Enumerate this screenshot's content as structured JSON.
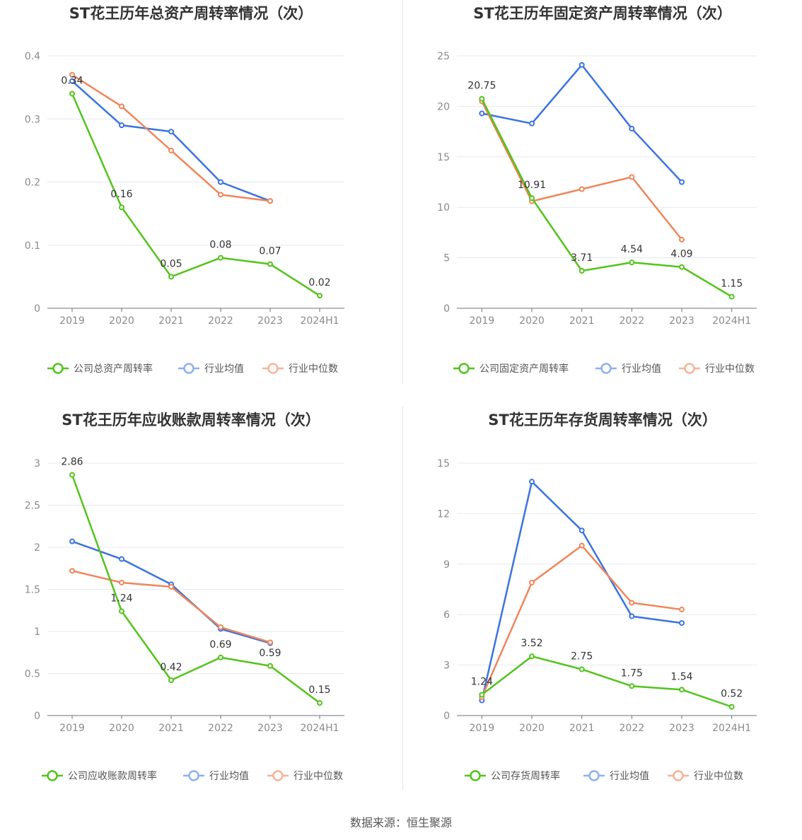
{
  "source_note": "数据来源：恒生聚源",
  "chart_data": [
    {
      "type": "line",
      "title": "ST花王历年总资产周转率情况（次）",
      "categories": [
        "2019",
        "2020",
        "2021",
        "2022",
        "2023",
        "2024H1"
      ],
      "y_ticks": [
        "0",
        "0.1",
        "0.2",
        "0.3",
        "0.4"
      ],
      "ylim": [
        0,
        0.4
      ],
      "grid": true,
      "legend_position": "bottom",
      "series": [
        {
          "name": "公司总资产周转率",
          "color": "#52c41a",
          "values": [
            0.34,
            0.16,
            0.05,
            0.08,
            0.07,
            0.02
          ],
          "labels": [
            "0.34",
            "0.16",
            "0.05",
            "0.08",
            "0.07",
            "0.02"
          ]
        },
        {
          "name": "行业均值",
          "color": "#3b73e0",
          "values": [
            0.36,
            0.29,
            0.28,
            0.2,
            0.17,
            null
          ]
        },
        {
          "name": "行业中位数",
          "color": "#f0855a",
          "values": [
            0.37,
            0.32,
            0.25,
            0.18,
            0.17,
            null
          ]
        }
      ]
    },
    {
      "type": "line",
      "title": "ST花王历年固定资产周转率情况（次）",
      "categories": [
        "2019",
        "2020",
        "2021",
        "2022",
        "2023",
        "2024H1"
      ],
      "y_ticks": [
        "0",
        "5",
        "10",
        "15",
        "20",
        "25"
      ],
      "ylim": [
        0,
        25
      ],
      "grid": true,
      "legend_position": "bottom",
      "series": [
        {
          "name": "公司固定资产周转率",
          "color": "#52c41a",
          "values": [
            20.75,
            10.91,
            3.71,
            4.54,
            4.09,
            1.15
          ],
          "labels": [
            "20.75",
            "10.91",
            "3.71",
            "4.54",
            "4.09",
            "1.15"
          ]
        },
        {
          "name": "行业均值",
          "color": "#3b73e0",
          "values": [
            19.3,
            18.3,
            24.1,
            17.8,
            12.5,
            null
          ]
        },
        {
          "name": "行业中位数",
          "color": "#f0855a",
          "values": [
            20.5,
            10.6,
            11.8,
            13.0,
            6.8,
            null
          ]
        }
      ]
    },
    {
      "type": "line",
      "title": "ST花王历年应收账款周转率情况（次）",
      "categories": [
        "2019",
        "2020",
        "2021",
        "2022",
        "2023",
        "2024H1"
      ],
      "y_ticks": [
        "0",
        "0.5",
        "1",
        "1.5",
        "2",
        "2.5",
        "3"
      ],
      "ylim": [
        0,
        3
      ],
      "grid": true,
      "legend_position": "bottom",
      "series": [
        {
          "name": "公司应收账款周转率",
          "color": "#52c41a",
          "values": [
            2.86,
            1.24,
            0.42,
            0.69,
            0.59,
            0.15
          ],
          "labels": [
            "2.86",
            "1.24",
            "0.42",
            "0.69",
            "0.59",
            "0.15"
          ]
        },
        {
          "name": "行业均值",
          "color": "#3b73e0",
          "values": [
            2.07,
            1.86,
            1.56,
            1.03,
            0.86,
            null
          ]
        },
        {
          "name": "行业中位数",
          "color": "#f0855a",
          "values": [
            1.72,
            1.58,
            1.53,
            1.05,
            0.87,
            null
          ]
        }
      ]
    },
    {
      "type": "line",
      "title": "ST花王历年存货周转率情况（次）",
      "categories": [
        "2019",
        "2020",
        "2021",
        "2022",
        "2023",
        "2024H1"
      ],
      "y_ticks": [
        "0",
        "3",
        "6",
        "9",
        "12",
        "15"
      ],
      "ylim": [
        0,
        15
      ],
      "grid": true,
      "legend_position": "bottom",
      "series": [
        {
          "name": "公司存货周转率",
          "color": "#52c41a",
          "values": [
            1.24,
            3.52,
            2.75,
            1.75,
            1.54,
            0.52
          ],
          "labels": [
            "1.24",
            "3.52",
            "2.75",
            "1.75",
            "1.54",
            "0.52"
          ]
        },
        {
          "name": "行业均值",
          "color": "#3b73e0",
          "values": [
            0.9,
            13.9,
            11.0,
            5.9,
            5.5,
            null
          ]
        },
        {
          "name": "行业中位数",
          "color": "#f0855a",
          "values": [
            1.1,
            7.9,
            10.1,
            6.7,
            6.3,
            null
          ]
        }
      ]
    }
  ]
}
